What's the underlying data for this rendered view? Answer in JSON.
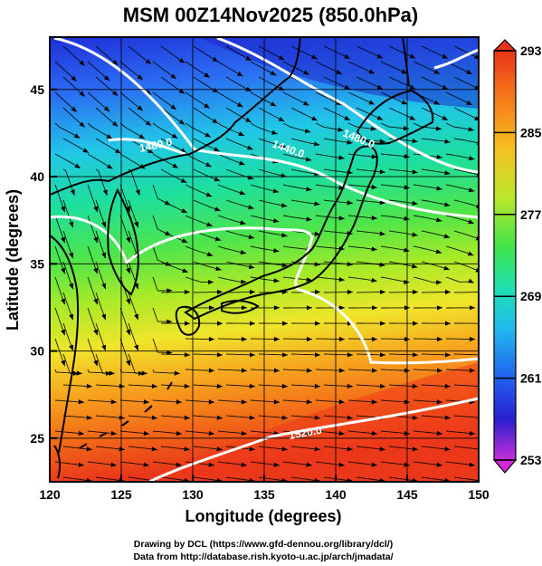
{
  "title": "MSM 00Z14Nov2025 (850.0hPa)",
  "x_axis": {
    "label": "Longitude (degrees)",
    "range": [
      120,
      150
    ],
    "ticks": [
      "120",
      "125",
      "130",
      "135",
      "140",
      "145",
      "150"
    ]
  },
  "y_axis": {
    "label": "Latitude  (degrees)",
    "range": [
      22.5,
      48
    ],
    "ticks": [
      "25",
      "30",
      "35",
      "40",
      "45"
    ]
  },
  "colorbar": {
    "ticks": [
      "293",
      "285",
      "277",
      "269",
      "261",
      "253"
    ],
    "range": [
      253,
      293
    ]
  },
  "contour_labels": [
    "1480.0",
    "1440.0",
    "1480.0",
    "1520.0"
  ],
  "credits": {
    "line1": "Drawing by DCL (https://www.gfd-dennou.org/library/dcl/)",
    "line2": "Data from http://database.rish.kyoto-u.ac.jp/arch/jmadata/"
  }
}
